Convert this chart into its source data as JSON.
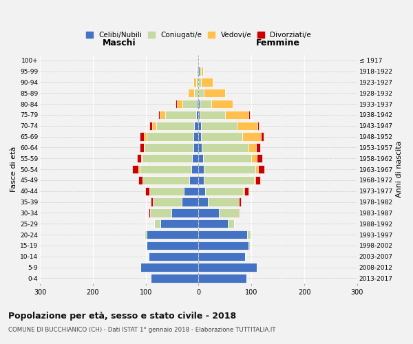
{
  "age_groups": [
    "0-4",
    "5-9",
    "10-14",
    "15-19",
    "20-24",
    "25-29",
    "30-34",
    "35-39",
    "40-44",
    "45-49",
    "50-54",
    "55-59",
    "60-64",
    "65-69",
    "70-74",
    "75-79",
    "80-84",
    "85-89",
    "90-94",
    "95-99",
    "100+"
  ],
  "birth_years": [
    "2013-2017",
    "2008-2012",
    "2003-2007",
    "1998-2002",
    "1993-1997",
    "1988-1992",
    "1983-1987",
    "1978-1982",
    "1973-1977",
    "1968-1972",
    "1963-1967",
    "1958-1962",
    "1953-1957",
    "1948-1952",
    "1943-1947",
    "1938-1942",
    "1933-1937",
    "1928-1932",
    "1923-1927",
    "1918-1922",
    "≤ 1917"
  ],
  "maschi": {
    "celibi": [
      90,
      110,
      95,
      98,
      98,
      72,
      52,
      32,
      28,
      18,
      14,
      12,
      10,
      10,
      8,
      5,
      3,
      0,
      0,
      2,
      1
    ],
    "coniugati": [
      0,
      0,
      0,
      0,
      4,
      12,
      40,
      55,
      65,
      88,
      98,
      95,
      92,
      88,
      72,
      58,
      28,
      8,
      5,
      2,
      0
    ],
    "vedovi": [
      0,
      0,
      0,
      0,
      0,
      0,
      0,
      0,
      0,
      0,
      2,
      2,
      2,
      5,
      8,
      10,
      10,
      12,
      5,
      0,
      0
    ],
    "divorziati": [
      0,
      0,
      0,
      0,
      0,
      0,
      2,
      4,
      8,
      8,
      12,
      8,
      8,
      8,
      5,
      3,
      2,
      0,
      0,
      0,
      0
    ]
  },
  "femmine": {
    "nubili": [
      90,
      110,
      88,
      95,
      92,
      55,
      38,
      18,
      12,
      10,
      10,
      8,
      6,
      5,
      4,
      2,
      2,
      0,
      0,
      2,
      1
    ],
    "coniugate": [
      0,
      0,
      0,
      2,
      6,
      12,
      38,
      58,
      72,
      95,
      98,
      92,
      88,
      78,
      68,
      48,
      22,
      10,
      5,
      2,
      0
    ],
    "vedove": [
      0,
      0,
      0,
      0,
      0,
      0,
      0,
      0,
      2,
      2,
      5,
      10,
      15,
      35,
      40,
      45,
      40,
      40,
      22,
      5,
      0
    ],
    "divorziate": [
      0,
      0,
      0,
      0,
      0,
      0,
      2,
      4,
      8,
      10,
      12,
      10,
      8,
      5,
      2,
      2,
      0,
      0,
      0,
      0,
      0
    ]
  },
  "colors": {
    "celibi": "#4472c4",
    "coniugati": "#c5d9a0",
    "vedovi": "#ffc04d",
    "divorziati": "#cc0000"
  },
  "legend_labels": [
    "Celibi/Nubili",
    "Coniugati/e",
    "Vedovi/e",
    "Divorziati/e"
  ],
  "title": "Popolazione per età, sesso e stato civile - 2018",
  "subtitle": "COMUNE DI BUCCHIANICO (CH) - Dati ISTAT 1° gennaio 2018 - Elaborazione TUTTITALIA.IT",
  "label_maschi": "Maschi",
  "label_femmine": "Femmine",
  "ylabel_left": "Fasce di età",
  "ylabel_right": "Anni di nascita",
  "xlim": 300,
  "bg_color": "#f2f2f2"
}
